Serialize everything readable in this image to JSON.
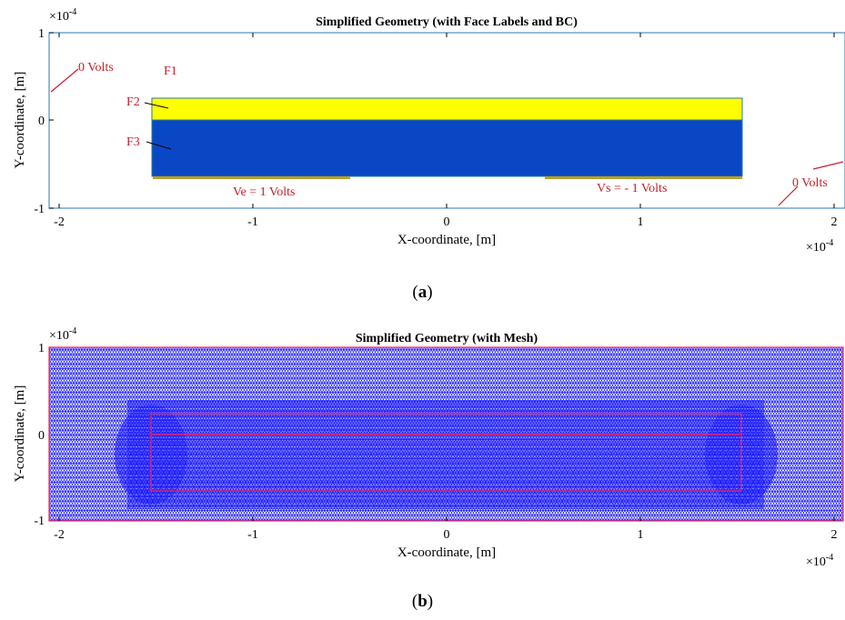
{
  "figure_a": {
    "title": "Simplified Geometry (with Face Labels and BC)",
    "xlabel": "X-coordinate, [m]",
    "ylabel": "Y-coordinate, [m]",
    "x_exponent": "×10",
    "x_exponent_power": "-4",
    "y_exponent": "×10",
    "y_exponent_power": "-4",
    "x_ticks": [
      "-2",
      "-1",
      "0",
      "1",
      "2"
    ],
    "y_ticks": [
      "1",
      "0",
      "-1"
    ],
    "face_labels": [
      "F1",
      "F2",
      "F3"
    ],
    "bc_labels": {
      "left_top": "0 Volts",
      "right_bottom": "0 Volts",
      "emitter": "Ve = 1 Volts",
      "source": "Vs = - 1 Volts"
    },
    "caption_open": "(",
    "caption_letter": "a",
    "caption_close": ")",
    "colors": {
      "f2": "#ffff00",
      "f3": "#0a47c5",
      "bc_line": "#c8202a",
      "electrode": "#b8a028",
      "border": "#4a8fc4"
    }
  },
  "figure_b": {
    "title": "Simplified Geometry (with Mesh)",
    "xlabel": "X-coordinate, [m]",
    "ylabel": "Y-coordinate, [m]",
    "x_exponent": "×10",
    "x_exponent_power": "-4",
    "y_exponent": "×10",
    "y_exponent_power": "-4",
    "x_ticks": [
      "-2",
      "-1",
      "0",
      "1",
      "2"
    ],
    "y_ticks": [
      "1",
      "0",
      "-1"
    ],
    "caption_open": "(",
    "caption_letter": "b",
    "caption_close": ")",
    "colors": {
      "mesh": "#1a1aff",
      "edges": "#ff2050"
    }
  }
}
